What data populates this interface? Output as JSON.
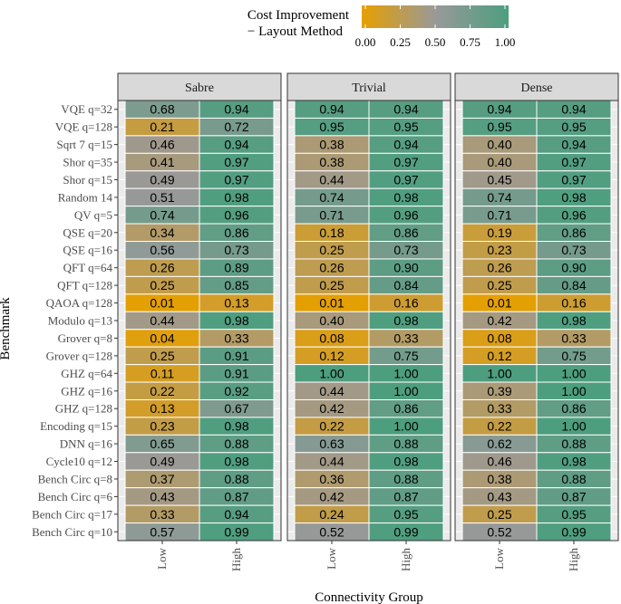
{
  "chart_data": {
    "type": "heatmap",
    "legend": {
      "title_line1": "Cost Improvement",
      "title_line2": "− Layout Method",
      "ticks": [
        "0.00",
        "0.25",
        "0.50",
        "0.75",
        "1.00"
      ],
      "tick_values": [
        0.0,
        0.25,
        0.5,
        0.75,
        1.0
      ],
      "colors": [
        "#E69F00",
        "#999999",
        "#4D9E7F"
      ],
      "placement": "top"
    },
    "xlabel": "Connectivity Group",
    "ylabel": "Benchmark",
    "x_categories": [
      "Low",
      "High"
    ],
    "benchmarks": [
      "VQE q=32",
      "VQE q=128",
      "Sqrt 7 q=15",
      "Shor q=35",
      "Shor q=15",
      "Random 14",
      "QV q=5",
      "QSE q=20",
      "QSE q=16",
      "QFT q=64",
      "QFT q=128",
      "QAOA q=128",
      "Modulo q=13",
      "Grover q=8",
      "Grover q=128",
      "GHZ q=64",
      "GHZ q=16",
      "GHZ q=128",
      "Encoding q=15",
      "DNN q=16",
      "Cycle10 q=12",
      "Bench Circ q=8",
      "Bench Circ q=6",
      "Bench Circ q=17",
      "Bench Circ q=10"
    ],
    "panels": [
      {
        "name": "Sabre",
        "low": [
          "0.68",
          "0.21",
          "0.46",
          "0.41",
          "0.49",
          "0.51",
          "0.74",
          "0.34",
          "0.56",
          "0.26",
          "0.25",
          "0.01",
          "0.44",
          "0.04",
          "0.25",
          "0.11",
          "0.22",
          "0.13",
          "0.23",
          "0.65",
          "0.49",
          "0.37",
          "0.43",
          "0.33",
          "0.57"
        ],
        "high": [
          "0.94",
          "0.72",
          "0.94",
          "0.97",
          "0.97",
          "0.98",
          "0.96",
          "0.86",
          "0.73",
          "0.89",
          "0.85",
          "0.13",
          "0.98",
          "0.33",
          "0.91",
          "0.91",
          "0.92",
          "0.67",
          "0.98",
          "0.88",
          "0.98",
          "0.88",
          "0.87",
          "0.94",
          "0.99"
        ]
      },
      {
        "name": "Trivial",
        "low": [
          "0.94",
          "0.95",
          "0.38",
          "0.38",
          "0.44",
          "0.74",
          "0.71",
          "0.18",
          "0.25",
          "0.26",
          "0.25",
          "0.01",
          "0.40",
          "0.08",
          "0.12",
          "1.00",
          "0.44",
          "0.42",
          "0.22",
          "0.63",
          "0.44",
          "0.36",
          "0.42",
          "0.24",
          "0.52"
        ],
        "high": [
          "0.94",
          "0.95",
          "0.94",
          "0.97",
          "0.97",
          "0.98",
          "0.96",
          "0.86",
          "0.73",
          "0.90",
          "0.84",
          "0.16",
          "0.98",
          "0.33",
          "0.75",
          "1.00",
          "1.00",
          "0.86",
          "1.00",
          "0.88",
          "0.98",
          "0.88",
          "0.87",
          "0.95",
          "0.99"
        ]
      },
      {
        "name": "Dense",
        "low": [
          "0.94",
          "0.95",
          "0.40",
          "0.40",
          "0.45",
          "0.74",
          "0.71",
          "0.19",
          "0.23",
          "0.26",
          "0.25",
          "0.01",
          "0.42",
          "0.08",
          "0.12",
          "1.00",
          "0.39",
          "0.33",
          "0.22",
          "0.62",
          "0.46",
          "0.38",
          "0.43",
          "0.25",
          "0.52"
        ],
        "high": [
          "0.94",
          "0.95",
          "0.94",
          "0.97",
          "0.97",
          "0.98",
          "0.96",
          "0.86",
          "0.73",
          "0.90",
          "0.84",
          "0.16",
          "0.98",
          "0.33",
          "0.75",
          "1.00",
          "1.00",
          "0.86",
          "1.00",
          "0.88",
          "0.98",
          "0.88",
          "0.87",
          "0.95",
          "0.99"
        ]
      }
    ]
  }
}
